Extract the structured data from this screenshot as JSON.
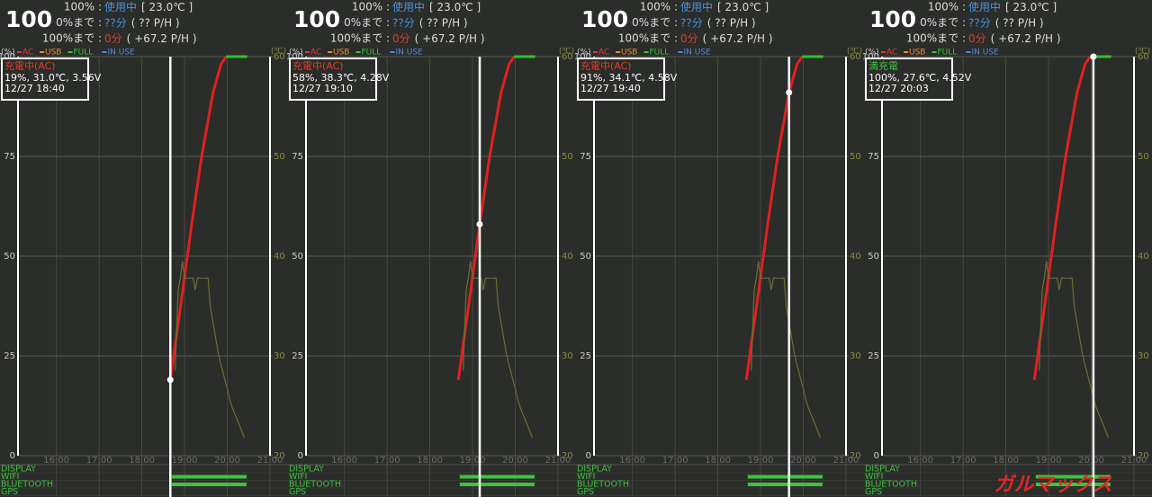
{
  "graph": {
    "legend": [
      {
        "name": "AC",
        "color": "#e83a2a"
      },
      {
        "name": "USB",
        "color": "#f08a24"
      },
      {
        "name": "FULL",
        "color": "#3cc43c"
      },
      {
        "name": "IN USE",
        "color": "#4a90e2"
      }
    ],
    "y_unit": "(%)",
    "y2_unit": "(℃)",
    "xlim": [
      15.1,
      21
    ],
    "xticks": [
      {
        "value": 16,
        "label": "16:00"
      },
      {
        "value": 17,
        "label": "17:00"
      },
      {
        "value": 18,
        "label": "18:00"
      },
      {
        "value": 19,
        "label": "19:00"
      },
      {
        "value": 20,
        "label": "20:00"
      },
      {
        "value": 21,
        "label": "21:00"
      }
    ],
    "ylim": [
      0,
      100
    ],
    "yticks": [
      0,
      25,
      50,
      75,
      100
    ],
    "y2lim": [
      20,
      60
    ],
    "y2ticks": [
      20,
      30,
      40,
      50,
      60
    ],
    "series": [
      {
        "name": "battery",
        "color": "#e02020",
        "x": [
          18.667,
          18.9,
          19.167,
          19.4,
          19.667,
          19.85,
          19.97
        ],
        "values": [
          19,
          37,
          58,
          75,
          91,
          98,
          100
        ]
      },
      {
        "name": "full",
        "color": "#2ec02e",
        "x": [
          19.97,
          20.47
        ],
        "values": [
          100,
          100
        ]
      },
      {
        "name": "temperature",
        "axis": "y2",
        "color": "#6e6e32",
        "x": [
          18.78,
          18.8,
          18.85,
          18.9,
          18.95,
          19.0,
          19.2,
          19.25,
          19.3,
          19.35,
          19.55,
          19.6,
          19.8,
          20.1,
          20.4
        ],
        "values": [
          28.5,
          31,
          36.5,
          37.8,
          39.5,
          37.8,
          37.8,
          36.6,
          37.8,
          37.8,
          37.8,
          35,
          30,
          25,
          21.8
        ]
      }
    ],
    "usage_rows": [
      {
        "label": "DISPLAY",
        "range": null
      },
      {
        "label": "WIFI",
        "range": [
          18.7,
          20.45
        ]
      },
      {
        "label": "BLUETOOTH",
        "range": [
          18.7,
          20.45
        ]
      },
      {
        "label": "GPS",
        "range": null
      }
    ]
  },
  "panels": [
    {
      "level": "100",
      "lines": [
        {
          "prefix": "100% :",
          "value": "使用中",
          "suffix": "[ 23.0℃ ]",
          "color": "#4a90e2"
        },
        {
          "prefix": "0%まで :",
          "value": "??分",
          "suffix": "( ?? P/H )",
          "color": "#4a90e2"
        },
        {
          "prefix": "100%まで :",
          "value": "0分",
          "suffix": "( +67.2 P/H )",
          "color": "#e83a2a"
        }
      ],
      "info": {
        "status": "充電中(AC)",
        "status_color": "#e83a2a",
        "detail": "19%, 31.0℃, 3.56V",
        "time": "12/27 18:40"
      },
      "cursor": {
        "x": 18.667,
        "y": 19
      }
    },
    {
      "level": "100",
      "lines": [
        {
          "prefix": "100% :",
          "value": "使用中",
          "suffix": "[ 23.0℃ ]",
          "color": "#4a90e2"
        },
        {
          "prefix": "0%まで :",
          "value": "??分",
          "suffix": "( ?? P/H )",
          "color": "#4a90e2"
        },
        {
          "prefix": "100%まで :",
          "value": "0分",
          "suffix": "( +67.2 P/H )",
          "color": "#e83a2a"
        }
      ],
      "info": {
        "status": "充電中(AC)",
        "status_color": "#e83a2a",
        "detail": "58%, 38.3℃, 4.28V",
        "time": "12/27 19:10"
      },
      "cursor": {
        "x": 19.167,
        "y": 58
      }
    },
    {
      "level": "100",
      "lines": [
        {
          "prefix": "100% :",
          "value": "使用中",
          "suffix": "[ 23.0℃ ]",
          "color": "#4a90e2"
        },
        {
          "prefix": "0%まで :",
          "value": "??分",
          "suffix": "( ?? P/H )",
          "color": "#4a90e2"
        },
        {
          "prefix": "100%まで :",
          "value": "0分",
          "suffix": "( +67.2 P/H )",
          "color": "#e83a2a"
        }
      ],
      "info": {
        "status": "充電中(AC)",
        "status_color": "#e83a2a",
        "detail": "91%, 34.1℃, 4.58V",
        "time": "12/27 19:40"
      },
      "cursor": {
        "x": 19.667,
        "y": 91
      }
    },
    {
      "level": "100",
      "lines": [
        {
          "prefix": "100% :",
          "value": "使用中",
          "suffix": "[ 23.0℃ ]",
          "color": "#4a90e2"
        },
        {
          "prefix": "0%まで :",
          "value": "??分",
          "suffix": "( ?? P/H )",
          "color": "#4a90e2"
        },
        {
          "prefix": "100%まで :",
          "value": "0分",
          "suffix": "( +67.2 P/H )",
          "color": "#e83a2a"
        }
      ],
      "info": {
        "status": "満充電",
        "status_color": "#3cc43c",
        "detail": "100%, 27.6℃, 4.52V",
        "time": "12/27 20:03"
      },
      "cursor": {
        "x": 20.05,
        "y": 100
      }
    }
  ],
  "watermark": "ガルマックス"
}
